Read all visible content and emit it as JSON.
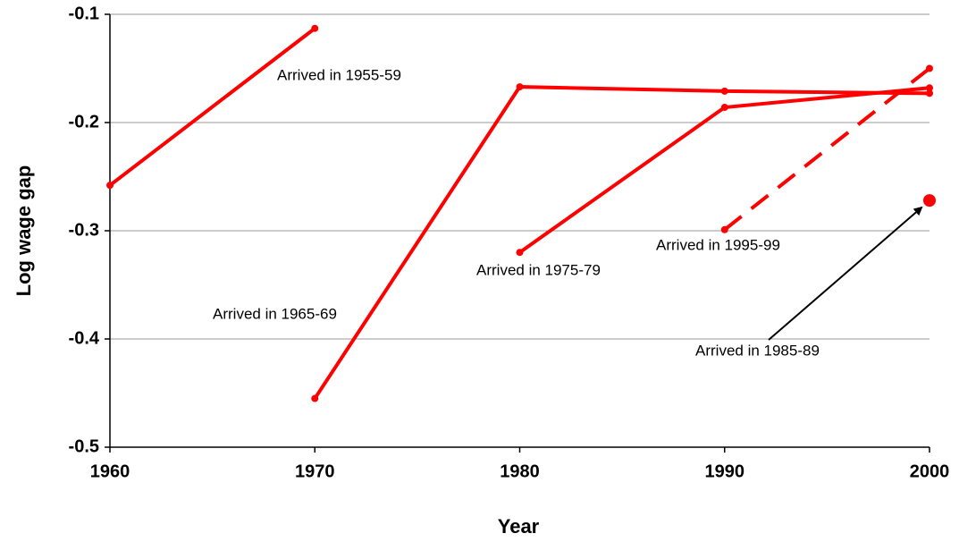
{
  "chart_data": {
    "type": "line",
    "x_label": "Year",
    "y_label": "Log wage gap",
    "x": [
      1960,
      1970,
      1980,
      1990,
      2000
    ],
    "xlim": [
      1960,
      2000
    ],
    "xticks": [
      1960,
      1970,
      1980,
      1990,
      2000
    ],
    "ylim": [
      -0.5,
      -0.1
    ],
    "yticks": [
      -0.5,
      -0.4,
      -0.3,
      -0.2,
      -0.1
    ],
    "grid": true,
    "series": [
      {
        "name": "Arrived in 1955-59",
        "color": "#ff0000",
        "linestyle": "solid",
        "values": [
          -0.258,
          -0.113,
          null,
          null,
          null
        ]
      },
      {
        "name": "Arrived in 1965-69",
        "color": "#ff0000",
        "linestyle": "solid",
        "values": [
          null,
          -0.455,
          -0.167,
          -0.171,
          -0.173
        ]
      },
      {
        "name": "Arrived in 1975-79",
        "color": "#ff0000",
        "linestyle": "solid",
        "values": [
          null,
          null,
          -0.32,
          -0.186,
          -0.168
        ]
      },
      {
        "name": "Arrived in 1995-99",
        "color": "#ff0000",
        "linestyle": "dashed",
        "values": [
          null,
          null,
          null,
          -0.299,
          -0.15
        ]
      },
      {
        "name": "Arrived in 1985-89",
        "color": "#ff0000",
        "linestyle": "solid",
        "marker": "large",
        "values": [
          null,
          null,
          null,
          null,
          -0.272
        ]
      }
    ]
  }
}
